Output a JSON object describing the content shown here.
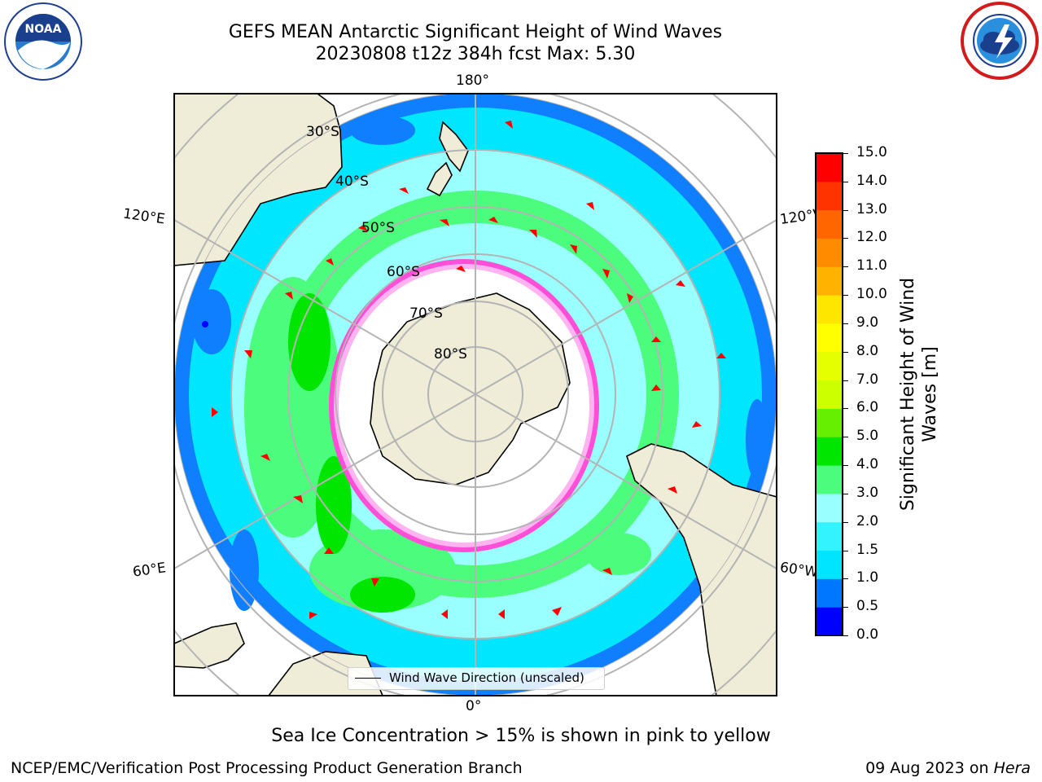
{
  "header": {
    "title_line1": "GEFS MEAN Antarctic Significant Height of Wind Waves",
    "title_line2": "20230808 t12z 384h fcst   Max: 5.30"
  },
  "logos": {
    "noaa": {
      "text": "NOAA",
      "ring_text": "NATIONAL OCEANIC AND ATMOSPHERIC ADMINISTRATION · U.S. DEPARTMENT OF COMMERCE",
      "icon": "noaa-logo"
    },
    "nws": {
      "ring_text": "NATIONAL WEATHER SERVICE",
      "icon": "nws-logo"
    }
  },
  "map": {
    "meridian_labels": {
      "top": "180°",
      "bottom": "0°",
      "upper_left": "120°E",
      "upper_right": "120°W",
      "lower_left": "60°E",
      "lower_right": "60°W"
    },
    "latitude_labels": [
      "30°S",
      "40°S",
      "50°S",
      "60°S",
      "70°S",
      "80°S"
    ],
    "legend_label": "Wind Wave Direction (unscaled)",
    "colors": {
      "land": "#efedd8",
      "ice": "#ffffff",
      "arrow": "#ff0000",
      "grid": "#b4b4b4"
    }
  },
  "colorbar": {
    "label": "Significant Height of Wind Waves [m]",
    "label_line1": "Significant Height of Wind",
    "label_line2": "Waves [m]",
    "ticks": [
      "0.0",
      "0.5",
      "1.0",
      "1.5",
      "2.0",
      "3.0",
      "4.0",
      "5.0",
      "6.0",
      "7.0",
      "8.0",
      "9.0",
      "10.0",
      "11.0",
      "12.0",
      "13.0",
      "14.0",
      "15.0"
    ],
    "colors": [
      "#0000ff",
      "#0077ff",
      "#00e5ff",
      "#33f3ff",
      "#99ffff",
      "#4cfc7c",
      "#00e600",
      "#66f000",
      "#ccff00",
      "#e6ff00",
      "#ffff00",
      "#ffe600",
      "#ffb300",
      "#ff8c00",
      "#ff6600",
      "#ff3300",
      "#ff0000"
    ]
  },
  "footer": {
    "note": "Sea Ice Concentration > 15% is shown in pink to yellow",
    "credit": "NCEP/EMC/Verification Post Processing Product Generation Branch",
    "date": "09 Aug 2023 on",
    "machine": "Hera"
  }
}
